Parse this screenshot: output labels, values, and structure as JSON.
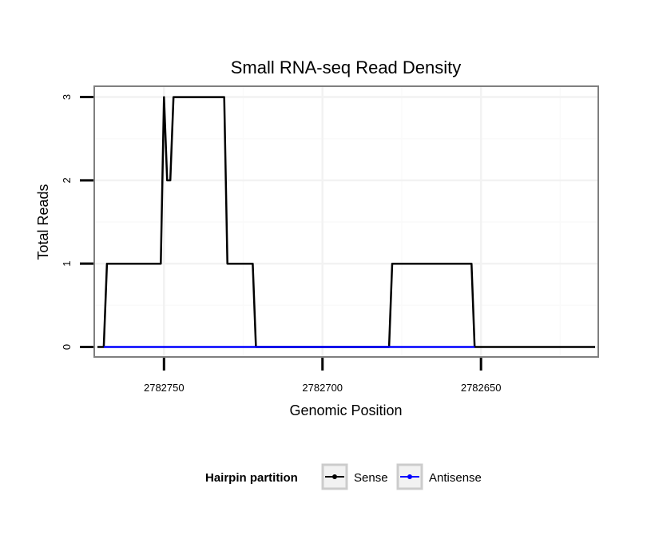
{
  "chart_data": {
    "type": "line",
    "title": "Small RNA-seq Read Density",
    "xlabel": "Genomic Position",
    "ylabel": "Total Reads",
    "x_reversed": true,
    "xlim": [
      2782772,
      2782613
    ],
    "ylim": [
      -0.12,
      3.13
    ],
    "x_ticks": [
      2782750,
      2782700,
      2782650
    ],
    "x_tick_labels": [
      "2782750",
      "2782700",
      "2782650"
    ],
    "y_ticks": [
      0,
      1,
      2,
      3
    ],
    "y_tick_labels": [
      "0",
      "1",
      "2",
      "3"
    ],
    "grid": true,
    "legend": {
      "title": "Hairpin partition",
      "placement": "bottom",
      "entries": [
        "Sense",
        "Antisense"
      ]
    },
    "series": [
      {
        "name": "Sense",
        "color": "#000000",
        "x": [
          2782771,
          2782769,
          2782768,
          2782751,
          2782750,
          2782749,
          2782748,
          2782747,
          2782731,
          2782730,
          2782722,
          2782721,
          2782679,
          2782678,
          2782653,
          2782652,
          2782614
        ],
        "y": [
          0,
          0,
          1,
          1,
          3,
          2,
          2,
          3,
          3,
          1,
          1,
          0,
          0,
          1,
          1,
          0,
          0
        ]
      },
      {
        "name": "Antisense",
        "color": "#0000ff",
        "x": [
          2782769,
          2782721,
          2782679,
          2782652
        ],
        "y": [
          0,
          0,
          0,
          0
        ]
      }
    ]
  }
}
